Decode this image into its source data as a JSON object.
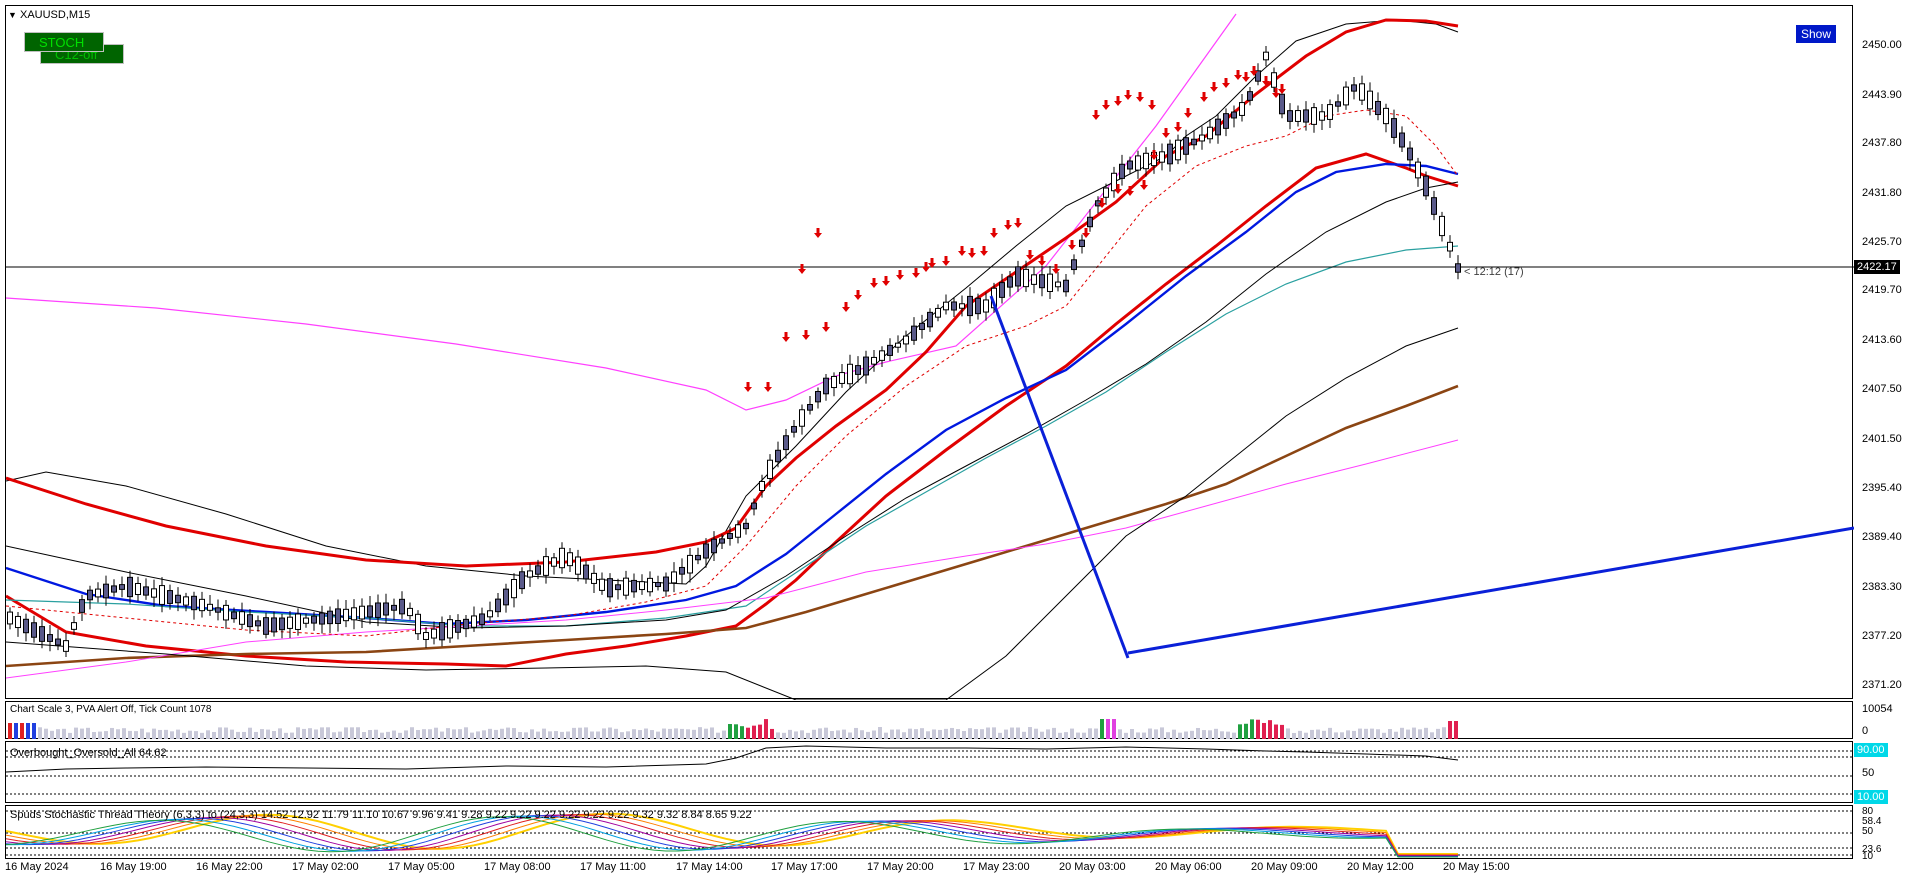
{
  "chart": {
    "symbol_label": "XAUUSD,M15",
    "stoch_button": "STOCH",
    "c12_button": "C12-off",
    "show_button": "Show",
    "timer_label": "< 12:12 (17)",
    "current_price": "2422.17",
    "y_ticks": [
      "2450.00",
      "2443.90",
      "2437.80",
      "2431.80",
      "2425.70",
      "2419.70",
      "2413.60",
      "2407.50",
      "2401.50",
      "2395.40",
      "2389.40",
      "2383.30",
      "2377.20",
      "2371.20"
    ],
    "x_ticks": [
      "16 May 2024",
      "16 May 19:00",
      "16 May 22:00",
      "17 May 02:00",
      "17 May 05:00",
      "17 May 08:00",
      "17 May 11:00",
      "17 May 14:00",
      "17 May 17:00",
      "17 May 20:00",
      "17 May 23:00",
      "20 May 03:00",
      "20 May 06:00",
      "20 May 09:00",
      "20 May 12:00",
      "20 May 15:00"
    ]
  },
  "volume_pane": {
    "label": "Chart Scale  3,   PVA Alert Off,   Tick Count  1078",
    "max_label": "10054",
    "min_label": "0"
  },
  "oscillator_pane": {
    "label": "Overbought_Oversold_All 64.62",
    "tag_high": "90.00",
    "tag_low": "10.00",
    "mid_label": "50"
  },
  "stochastic_pane": {
    "label": "Spuds Stochastic Thread Theory (6,3,3) to (24,3,3) 14.52 12.92 11.79 11.10 10.67 9.96 9.41 9.28 9.22 9.22 9.22 9.22 9.22 9.22 9.32 9.32 8.84 8.65 9.22",
    "tick_labels": [
      "80",
      "58.4",
      "50",
      "23.6",
      "10"
    ]
  },
  "colors": {
    "ma_red": "#e00000",
    "ma_blue": "#0018e0",
    "ma_brown": "#8b4513",
    "ma_magenta": "#ff40ff",
    "ma_teal": "#2aa0a0",
    "trend_line": "#0a20d8",
    "arrow": "#e00000",
    "tag_cyan": "#00d8e8",
    "show_bg": "#0018c8"
  }
}
